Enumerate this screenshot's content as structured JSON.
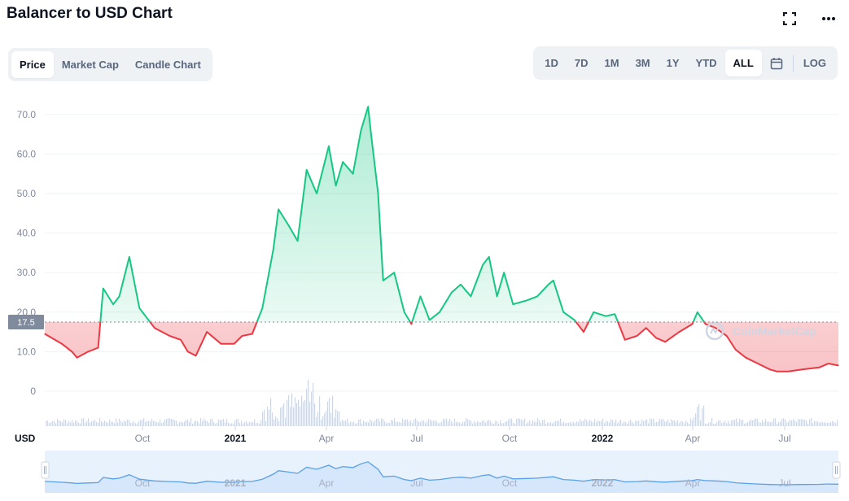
{
  "header": {
    "title": "Balancer to USD Chart",
    "expand_icon": "expand-icon",
    "more_icon": "more-icon"
  },
  "tabs": {
    "items": [
      "Price",
      "Market Cap",
      "Candle Chart"
    ],
    "active": 0
  },
  "ranges": {
    "items": [
      "1D",
      "7D",
      "1M",
      "3M",
      "1Y",
      "YTD",
      "ALL"
    ],
    "active": 6,
    "calendar_icon": "calendar-icon",
    "log_label": "LOG"
  },
  "watermark": "CoinMarketCap",
  "colors": {
    "up_line": "#16c784",
    "down_line": "#ea3943",
    "grid": "#eff2f5",
    "axis_text": "#808a9d",
    "navigator_fill": "#e8f2fd",
    "navigator_line": "#3861fb"
  },
  "chart_data": {
    "type": "line",
    "currency_label": "USD",
    "baseline": 17.5,
    "baseline_label": "17.5",
    "ylim": [
      0,
      72
    ],
    "y_ticks": [
      "0",
      "10.0",
      "20.0",
      "30.0",
      "40.0",
      "50.0",
      "60.0",
      "70.0"
    ],
    "x_ticks": [
      "Oct",
      "2021",
      "Apr",
      "Jul",
      "Oct",
      "2022",
      "Apr",
      "Jul"
    ],
    "x_ticks_bold": [
      false,
      true,
      false,
      false,
      false,
      true,
      false,
      false
    ],
    "x": [
      "2020-06-23",
      "2020-07-10",
      "2020-07-20",
      "2020-07-25",
      "2020-08-05",
      "2020-08-15",
      "2020-08-20",
      "2020-08-30",
      "2020-09-05",
      "2020-09-15",
      "2020-09-25",
      "2020-10-10",
      "2020-10-25",
      "2020-11-05",
      "2020-11-12",
      "2020-11-20",
      "2020-12-01",
      "2020-12-15",
      "2020-12-28",
      "2021-01-05",
      "2021-01-15",
      "2021-01-25",
      "2021-02-05",
      "2021-02-10",
      "2021-02-20",
      "2021-03-01",
      "2021-03-10",
      "2021-03-20",
      "2021-04-01",
      "2021-04-08",
      "2021-04-15",
      "2021-04-25",
      "2021-05-03",
      "2021-05-10",
      "2021-05-13",
      "2021-05-20",
      "2021-05-25",
      "2021-06-05",
      "2021-06-15",
      "2021-06-22",
      "2021-07-01",
      "2021-07-10",
      "2021-07-20",
      "2021-08-01",
      "2021-08-10",
      "2021-08-20",
      "2021-09-01",
      "2021-09-07",
      "2021-09-15",
      "2021-09-22",
      "2021-10-01",
      "2021-10-15",
      "2021-10-25",
      "2021-11-05",
      "2021-11-10",
      "2021-11-20",
      "2021-12-01",
      "2021-12-10",
      "2021-12-20",
      "2022-01-01",
      "2022-01-10",
      "2022-01-20",
      "2022-02-01",
      "2022-02-10",
      "2022-02-20",
      "2022-03-01",
      "2022-03-15",
      "2022-03-28",
      "2022-04-02",
      "2022-04-10",
      "2022-04-20",
      "2022-05-01",
      "2022-05-10",
      "2022-05-20",
      "2022-06-01",
      "2022-06-13",
      "2022-06-20",
      "2022-07-01",
      "2022-07-15",
      "2022-08-01",
      "2022-08-10",
      "2022-08-20"
    ],
    "values": [
      14.5,
      12.0,
      10.0,
      8.5,
      10.0,
      11.0,
      26.0,
      22.0,
      24.0,
      34.0,
      21.0,
      16.0,
      14.0,
      13.0,
      10.0,
      9.0,
      15.0,
      12.0,
      12.0,
      14.0,
      14.5,
      21.0,
      36.0,
      46.0,
      42.0,
      38.0,
      56.0,
      50.0,
      62.0,
      52.0,
      58.0,
      55.0,
      66.0,
      72.0,
      65.0,
      50.0,
      28.0,
      30.0,
      20.0,
      17.0,
      24.0,
      18.0,
      20.0,
      25.0,
      27.0,
      24.0,
      32.0,
      34.0,
      24.0,
      30.0,
      22.0,
      23.0,
      24.0,
      27.0,
      28.0,
      20.0,
      18.0,
      15.0,
      20.0,
      19.0,
      19.5,
      13.0,
      14.0,
      16.0,
      13.5,
      12.5,
      15.0,
      17.0,
      20.0,
      17.0,
      16.0,
      14.0,
      10.5,
      8.5,
      7.0,
      5.5,
      5.0,
      5.0,
      5.5,
      6.0,
      7.0,
      6.5
    ],
    "volume_note": "volume bars shown below price area",
    "navigator_x_ticks": [
      "Oct",
      "2021",
      "Apr",
      "Jul",
      "Oct",
      "2022",
      "Apr",
      "Jul"
    ]
  }
}
